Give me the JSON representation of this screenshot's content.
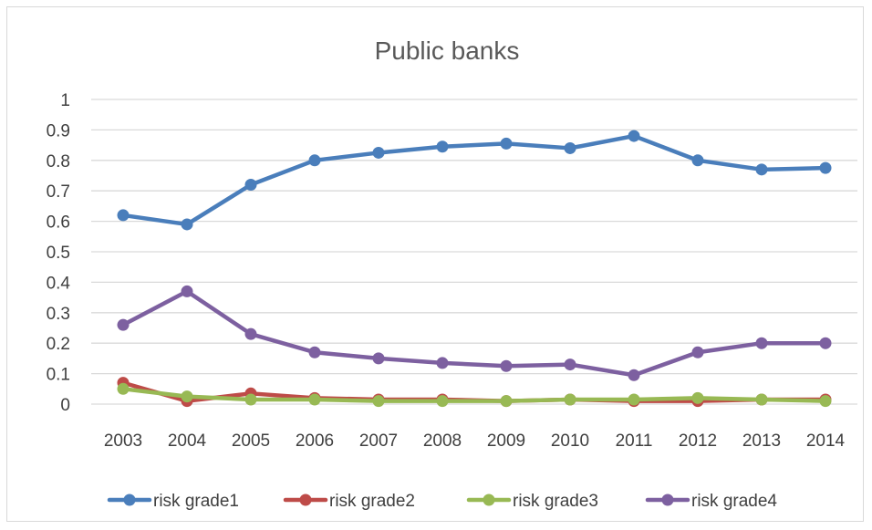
{
  "chart_data": {
    "type": "line",
    "title": "Public banks",
    "xlabel": "",
    "ylabel": "",
    "categories": [
      "2003",
      "2004",
      "2005",
      "2006",
      "2007",
      "2008",
      "2009",
      "2010",
      "2011",
      "2012",
      "2013",
      "2014"
    ],
    "ylim": [
      0,
      1
    ],
    "yticks": [
      "0",
      "0.1",
      "0.2",
      "0.3",
      "0.4",
      "0.5",
      "0.6",
      "0.7",
      "0.8",
      "0.9",
      "1"
    ],
    "grid": "horizontal",
    "legend_position": "bottom",
    "series": [
      {
        "name": "risk grade1",
        "color": "#4a7ebb",
        "values": [
          0.62,
          0.59,
          0.72,
          0.8,
          0.825,
          0.845,
          0.855,
          0.84,
          0.88,
          0.8,
          0.77,
          0.775
        ]
      },
      {
        "name": "risk grade2",
        "color": "#be4b48",
        "values": [
          0.07,
          0.01,
          0.035,
          0.02,
          0.015,
          0.015,
          0.01,
          0.015,
          0.01,
          0.01,
          0.015,
          0.015
        ]
      },
      {
        "name": "risk grade3",
        "color": "#98b954",
        "values": [
          0.05,
          0.025,
          0.015,
          0.015,
          0.01,
          0.01,
          0.01,
          0.015,
          0.015,
          0.02,
          0.015,
          0.01
        ]
      },
      {
        "name": "risk grade4",
        "color": "#7d60a0",
        "values": [
          0.26,
          0.37,
          0.23,
          0.17,
          0.15,
          0.135,
          0.125,
          0.13,
          0.095,
          0.17,
          0.2,
          0.2
        ]
      }
    ]
  }
}
